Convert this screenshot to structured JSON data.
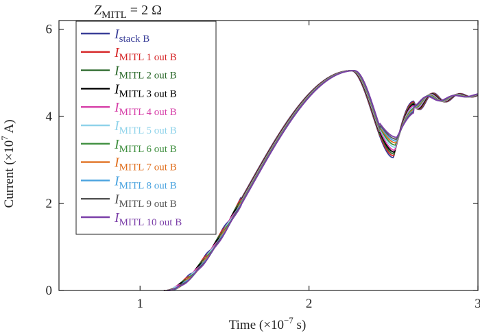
{
  "chart_data": {
    "type": "line",
    "title_main": "Z",
    "title_sub": "MITL",
    "title_rest": " = 2 Ω",
    "xlabel_main": "Time (×10",
    "xlabel_sup": "−7",
    "xlabel_rest": " s)",
    "ylabel_main": "Current (×10",
    "ylabel_sup": "7",
    "ylabel_rest": " A)",
    "xlim": [
      0.52,
      3.0
    ],
    "ylim": [
      0,
      6.2
    ],
    "xticks": [
      1,
      2,
      3
    ],
    "yticks": [
      0,
      2,
      4,
      6
    ],
    "legend_position": "top-left",
    "series": [
      {
        "name_main": "I",
        "name_sub": "stack B",
        "color": "#3a3f98",
        "ripple": 1.0,
        "phase": 0.0
      },
      {
        "name_main": "I",
        "name_sub": "MITL 1 out B",
        "color": "#d62728",
        "ripple": 0.95,
        "phase": 0.002
      },
      {
        "name_main": "I",
        "name_sub": "MITL 2 out B",
        "color": "#2e6b2e",
        "ripple": 0.9,
        "phase": 0.004
      },
      {
        "name_main": "I",
        "name_sub": "MITL 3 out B",
        "color": "#000000",
        "ripple": 0.85,
        "phase": 0.006
      },
      {
        "name_main": "I",
        "name_sub": "MITL 4 out B",
        "color": "#d63fa8",
        "ripple": 0.8,
        "phase": 0.008
      },
      {
        "name_main": "I",
        "name_sub": "MITL 5 out B",
        "color": "#8fd3ea",
        "ripple": 0.72,
        "phase": 0.01
      },
      {
        "name_main": "I",
        "name_sub": "MITL 6 out B",
        "color": "#3f8f3f",
        "ripple": 0.66,
        "phase": 0.012
      },
      {
        "name_main": "I",
        "name_sub": "MITL 7 out B",
        "color": "#e07020",
        "ripple": 0.6,
        "phase": 0.014
      },
      {
        "name_main": "I",
        "name_sub": "MITL 8 out B",
        "color": "#4aa3df",
        "ripple": 0.55,
        "phase": 0.016
      },
      {
        "name_main": "I",
        "name_sub": "MITL 9 out B",
        "color": "#555555",
        "ripple": 0.5,
        "phase": 0.018
      },
      {
        "name_main": "I",
        "name_sub": "MITL 10 out B",
        "color": "#7b3fa8",
        "ripple": 0.45,
        "phase": 0.02
      }
    ]
  }
}
